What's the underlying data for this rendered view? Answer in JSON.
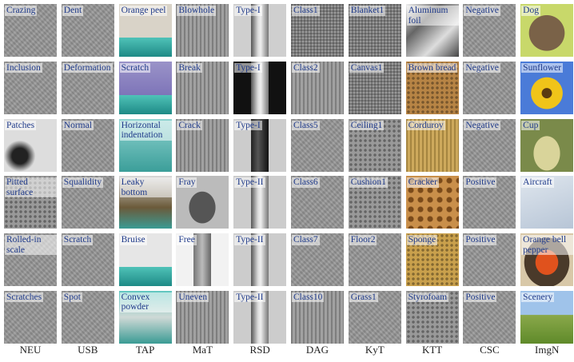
{
  "tiles": [
    [
      "Crazing",
      "Dent",
      "Orange peel",
      "Blowhole",
      "Type-I",
      "Class1",
      "Blanket1",
      "Aluminum foil",
      "Negative",
      "Dog"
    ],
    [
      "Inclusion",
      "Deformation",
      "Scratch",
      "Break",
      "Type-I",
      "Class2",
      "Canvas1",
      "Brown bread",
      "Negative",
      "Sunflower"
    ],
    [
      "Patches",
      "Normal",
      "Horizontal indentation",
      "Crack",
      "Type-I",
      "Class5",
      "Ceiling1",
      "Corduroy",
      "Negative",
      "Cup"
    ],
    [
      "Pitted surface",
      "Squalidity",
      "Leaky bottom",
      "Fray",
      "Type-II",
      "Class6",
      "Cushion1",
      "Cracker",
      "Positive",
      "Aircraft"
    ],
    [
      "Rolled-in scale",
      "Scratch",
      "Bruise",
      "Free",
      "Type-II",
      "Class7",
      "Floor2",
      "Sponge",
      "Positive",
      "Orange bell pepper"
    ],
    [
      "Scratches",
      "Spot",
      "Convex powder",
      "Uneven",
      "Type-II",
      "Class10",
      "Grass1",
      "Styrofoam",
      "Positive",
      "Scenery"
    ]
  ],
  "columns": [
    "NEU",
    "USB",
    "TAP",
    "MaT",
    "RSD",
    "DAG",
    "KyT",
    "KTT",
    "CSC",
    "ImgN"
  ]
}
